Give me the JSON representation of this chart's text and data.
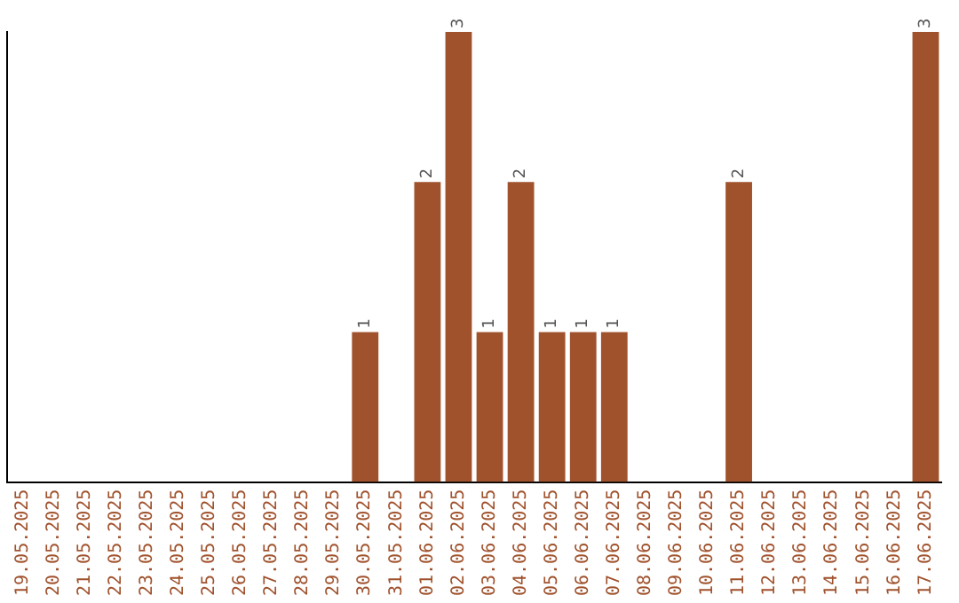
{
  "chart_data": {
    "type": "bar",
    "categories": [
      "19.05.2025",
      "20.05.2025",
      "21.05.2025",
      "22.05.2025",
      "23.05.2025",
      "24.05.2025",
      "25.05.2025",
      "26.05.2025",
      "27.05.2025",
      "28.05.2025",
      "29.05.2025",
      "30.05.2025",
      "31.05.2025",
      "01.06.2025",
      "02.06.2025",
      "03.06.2025",
      "04.06.2025",
      "05.06.2025",
      "06.06.2025",
      "07.06.2025",
      "08.06.2025",
      "09.06.2025",
      "10.06.2025",
      "11.06.2025",
      "12.06.2025",
      "13.06.2025",
      "14.06.2025",
      "15.06.2025",
      "16.06.2025",
      "17.06.2025"
    ],
    "values": [
      null,
      null,
      null,
      null,
      null,
      null,
      null,
      null,
      null,
      null,
      null,
      1,
      null,
      2,
      3,
      1,
      2,
      1,
      1,
      1,
      null,
      null,
      null,
      2,
      null,
      null,
      null,
      null,
      null,
      3
    ],
    "color": "#a0522d",
    "data_labels": true,
    "tick_labels": "x",
    "grid": false,
    "legend": false
  }
}
